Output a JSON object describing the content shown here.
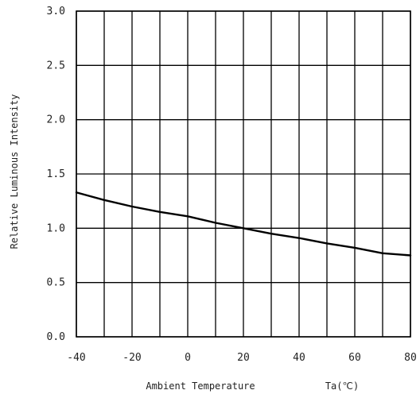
{
  "chart_data": {
    "type": "line",
    "title": "",
    "xlabel": "Ambient Temperature",
    "xlabel_unit": "Ta(℃)",
    "ylabel": "Relative Luminous Intensity",
    "xlim": [
      -40,
      80
    ],
    "ylim": [
      0.0,
      3.0
    ],
    "x_ticks": [
      -40,
      -20,
      0,
      20,
      40,
      60,
      80
    ],
    "x_tick_labels": [
      "-40",
      "-20",
      "0",
      "20",
      "40",
      "60",
      "80"
    ],
    "x_grid_step": 10,
    "y_ticks": [
      0.0,
      0.5,
      1.0,
      1.5,
      2.0,
      2.5,
      3.0
    ],
    "y_tick_labels": [
      "0.0",
      "0.5",
      "1.0",
      "1.5",
      "2.0",
      "2.5",
      "3.0"
    ],
    "grid": true,
    "colors": {
      "line": "#000000",
      "grid": "#000000",
      "text": "#222222"
    },
    "series": [
      {
        "x": [
          -40,
          -30,
          -20,
          -10,
          0,
          10,
          20,
          30,
          40,
          50,
          60,
          70,
          80
        ],
        "y": [
          1.33,
          1.26,
          1.2,
          1.15,
          1.11,
          1.05,
          1.0,
          0.95,
          0.91,
          0.86,
          0.82,
          0.77,
          0.75
        ]
      }
    ]
  }
}
